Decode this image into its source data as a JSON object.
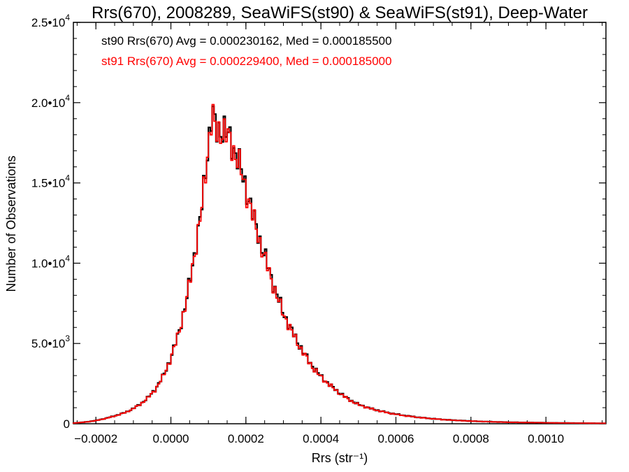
{
  "chart_data": {
    "type": "histogram-step",
    "title": "Rrs(670), 2008289, SeaWiFS(st90) & SeaWiFS(st91), Deep-Water",
    "xlabel": "Rrs (str⁻¹)",
    "ylabel": "Number of Observations",
    "xlim": [
      -0.00026,
      0.00116
    ],
    "ylim": [
      0,
      25000
    ],
    "x_ticks": [
      {
        "value": -0.0002,
        "label": "−0.0002"
      },
      {
        "value": 0.0,
        "label": "0.0000"
      },
      {
        "value": 0.0002,
        "label": "0.0002"
      },
      {
        "value": 0.0004,
        "label": "0.0004"
      },
      {
        "value": 0.0006,
        "label": "0.0006"
      },
      {
        "value": 0.0008,
        "label": "0.0008"
      },
      {
        "value": 0.001,
        "label": "0.0010"
      }
    ],
    "y_ticks": [
      {
        "value": 0,
        "label": "0"
      },
      {
        "value": 5000,
        "label": "5.0•10",
        "sup": "3"
      },
      {
        "value": 10000,
        "label": "1.0•10",
        "sup": "4"
      },
      {
        "value": 15000,
        "label": "1.5•10",
        "sup": "4"
      },
      {
        "value": 20000,
        "label": "2.0•10",
        "sup": "4"
      },
      {
        "value": 25000,
        "label": "2.5•10",
        "sup": "4"
      }
    ],
    "grid": false,
    "legend_position": "top-left inside",
    "series": [
      {
        "name": "st90",
        "legend": "st90 Rrs(670) Avg = 0.000230162, Med = 0.000185500",
        "color": "#000000",
        "bins": [
          [
            -0.00026,
            40
          ],
          [
            -0.00024,
            80
          ],
          [
            -0.00022,
            130
          ],
          [
            -0.0002,
            200
          ],
          [
            -0.00018,
            300
          ],
          [
            -0.00016,
            420
          ],
          [
            -0.00014,
            560
          ],
          [
            -0.00012,
            720
          ],
          [
            -0.0001,
            950
          ],
          [
            -8e-05,
            1250
          ],
          [
            -6e-05,
            1650
          ],
          [
            -4e-05,
            2200
          ],
          [
            -2e-05,
            3000
          ],
          [
            0.0,
            4100
          ],
          [
            2e-05,
            5600
          ],
          [
            4e-05,
            7500
          ],
          [
            6e-05,
            10200
          ],
          [
            8e-05,
            13000
          ],
          [
            0.0001,
            17500
          ],
          [
            0.00011,
            19500
          ],
          [
            0.00012,
            18200
          ],
          [
            0.00014,
            18400
          ],
          [
            0.00016,
            17600
          ],
          [
            0.00018,
            16400
          ],
          [
            0.0002,
            14700
          ],
          [
            0.00022,
            12900
          ],
          [
            0.00024,
            11200
          ],
          [
            0.00026,
            9700
          ],
          [
            0.00028,
            8200
          ],
          [
            0.0003,
            6900
          ],
          [
            0.00032,
            5900
          ],
          [
            0.00034,
            5000
          ],
          [
            0.00036,
            4200
          ],
          [
            0.00038,
            3500
          ],
          [
            0.0004,
            2950
          ],
          [
            0.00042,
            2500
          ],
          [
            0.00044,
            2100
          ],
          [
            0.00046,
            1750
          ],
          [
            0.00048,
            1450
          ],
          [
            0.0005,
            1200
          ],
          [
            0.00054,
            900
          ],
          [
            0.00058,
            680
          ],
          [
            0.00062,
            520
          ],
          [
            0.00066,
            400
          ],
          [
            0.0007,
            310
          ],
          [
            0.00074,
            240
          ],
          [
            0.00078,
            190
          ],
          [
            0.00082,
            150
          ],
          [
            0.00086,
            120
          ],
          [
            0.0009,
            95
          ],
          [
            0.00096,
            75
          ],
          [
            0.00102,
            55
          ],
          [
            0.00108,
            40
          ],
          [
            0.00114,
            30
          ]
        ]
      },
      {
        "name": "st91",
        "legend": "st91 Rrs(670) Avg = 0.000229400, Med = 0.000185000",
        "color": "#ff0000",
        "bins": [
          [
            -0.00026,
            38
          ],
          [
            -0.00024,
            78
          ],
          [
            -0.00022,
            125
          ],
          [
            -0.0002,
            195
          ],
          [
            -0.00018,
            295
          ],
          [
            -0.00016,
            415
          ],
          [
            -0.00014,
            550
          ],
          [
            -0.00012,
            710
          ],
          [
            -0.0001,
            940
          ],
          [
            -8e-05,
            1240
          ],
          [
            -6e-05,
            1640
          ],
          [
            -4e-05,
            2180
          ],
          [
            -2e-05,
            2980
          ],
          [
            0.0,
            4080
          ],
          [
            2e-05,
            5580
          ],
          [
            4e-05,
            7480
          ],
          [
            6e-05,
            10150
          ],
          [
            8e-05,
            12950
          ],
          [
            0.0001,
            17400
          ],
          [
            0.00011,
            19300
          ],
          [
            0.00012,
            18100
          ],
          [
            0.00014,
            18300
          ],
          [
            0.00016,
            17500
          ],
          [
            0.00018,
            16300
          ],
          [
            0.0002,
            14600
          ],
          [
            0.00022,
            12800
          ],
          [
            0.00024,
            11100
          ],
          [
            0.00026,
            9600
          ],
          [
            0.00028,
            8100
          ],
          [
            0.0003,
            6850
          ],
          [
            0.00032,
            5850
          ],
          [
            0.00034,
            4950
          ],
          [
            0.00036,
            4150
          ],
          [
            0.00038,
            3450
          ],
          [
            0.0004,
            2920
          ],
          [
            0.00042,
            2480
          ],
          [
            0.00044,
            2080
          ],
          [
            0.00046,
            1730
          ],
          [
            0.00048,
            1430
          ],
          [
            0.0005,
            1190
          ],
          [
            0.00054,
            890
          ],
          [
            0.00058,
            670
          ],
          [
            0.00062,
            510
          ],
          [
            0.00066,
            395
          ],
          [
            0.0007,
            305
          ],
          [
            0.00074,
            235
          ],
          [
            0.00078,
            185
          ],
          [
            0.00082,
            148
          ],
          [
            0.00086,
            118
          ],
          [
            0.0009,
            93
          ],
          [
            0.00096,
            73
          ],
          [
            0.00102,
            54
          ],
          [
            0.00108,
            39
          ],
          [
            0.00114,
            29
          ]
        ]
      }
    ]
  }
}
